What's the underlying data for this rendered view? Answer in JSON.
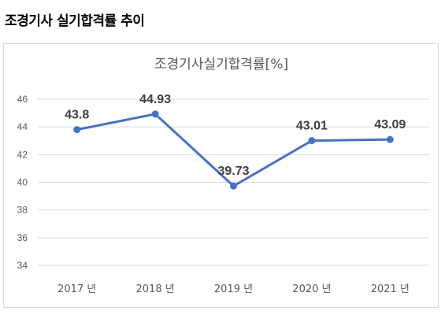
{
  "page": {
    "title": "조경기사 실기합격률 추이"
  },
  "chart_data": {
    "type": "line",
    "title": "조경기사실기합격률[%]",
    "categories": [
      "2017 년",
      "2018 년",
      "2019 년",
      "2020 년",
      "2021 년"
    ],
    "values": [
      43.8,
      44.93,
      39.73,
      43.01,
      43.09
    ],
    "data_labels": [
      "43.8",
      "44.93",
      "39.73",
      "43.01",
      "43.09"
    ],
    "y_ticks": [
      "34",
      "36",
      "38",
      "40",
      "42",
      "44",
      "46"
    ],
    "ylim": [
      34,
      46
    ],
    "grid": true,
    "legend": "none",
    "colors": {
      "series": "#4472c4",
      "grid": "#d9d9d9",
      "text": "#595959"
    }
  }
}
